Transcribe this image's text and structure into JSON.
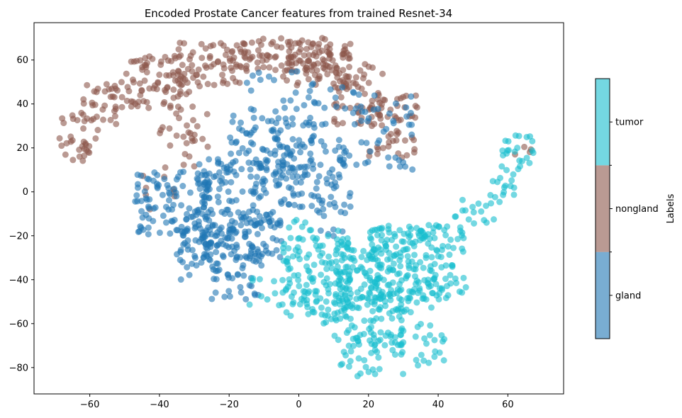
{
  "chart_data": {
    "type": "scatter",
    "title": "Encoded Prostate Cancer features from trained Resnet-34",
    "xlabel": "",
    "ylabel": "",
    "xlim": [
      -76,
      76
    ],
    "ylim": [
      -92,
      77
    ],
    "xticks": [
      -60,
      -40,
      -20,
      0,
      20,
      40,
      60
    ],
    "yticks": [
      -80,
      -60,
      -40,
      -20,
      0,
      20,
      40,
      60
    ],
    "marker_alpha": 0.6,
    "colorbar": {
      "label": "Labels",
      "classes": [
        "gland",
        "nongland",
        "tumor"
      ],
      "colors": [
        "#1f77b4",
        "#8c564b",
        "#17becf"
      ]
    },
    "series": [
      {
        "name": "nongland",
        "color": "#8c564b",
        "regions": [
          {
            "x": [
              -70,
              -58
            ],
            "y": [
              14,
              36
            ],
            "density": 0.55
          },
          {
            "x": [
              -62,
              -48
            ],
            "y": [
              28,
              50
            ],
            "density": 0.55
          },
          {
            "x": [
              -50,
              -30
            ],
            "y": [
              38,
              62
            ],
            "density": 0.7
          },
          {
            "x": [
              -35,
              -15
            ],
            "y": [
              48,
              68
            ],
            "density": 0.75
          },
          {
            "x": [
              -20,
              10
            ],
            "y": [
              55,
              70
            ],
            "density": 0.85
          },
          {
            "x": [
              -5,
              15
            ],
            "y": [
              48,
              68
            ],
            "density": 0.8
          },
          {
            "x": [
              10,
              25
            ],
            "y": [
              30,
              60
            ],
            "density": 0.6
          },
          {
            "x": [
              20,
              34
            ],
            "y": [
              15,
              45
            ],
            "density": 0.55
          },
          {
            "x": [
              -40,
              -25
            ],
            "y": [
              10,
              40
            ],
            "density": 0.3
          },
          {
            "x": [
              60,
              68
            ],
            "y": [
              15,
              22
            ],
            "density": 0.3
          },
          {
            "x": [
              -45,
              -35
            ],
            "y": [
              -8,
              10
            ],
            "density": 0.2
          }
        ]
      },
      {
        "name": "gland",
        "color": "#1f77b4",
        "regions": [
          {
            "x": [
              -47,
              -25
            ],
            "y": [
              -20,
              10
            ],
            "density": 0.75
          },
          {
            "x": [
              -30,
              -5
            ],
            "y": [
              -30,
              15
            ],
            "density": 0.85
          },
          {
            "x": [
              -20,
              5
            ],
            "y": [
              10,
              35
            ],
            "density": 0.6
          },
          {
            "x": [
              -5,
              15
            ],
            "y": [
              -10,
              25
            ],
            "density": 0.6
          },
          {
            "x": [
              -35,
              -15
            ],
            "y": [
              -40,
              -15
            ],
            "density": 0.6
          },
          {
            "x": [
              -25,
              -10
            ],
            "y": [
              -50,
              -30
            ],
            "density": 0.45
          },
          {
            "x": [
              0,
              20
            ],
            "y": [
              30,
              50
            ],
            "density": 0.3
          },
          {
            "x": [
              15,
              33
            ],
            "y": [
              10,
              45
            ],
            "density": 0.25
          },
          {
            "x": [
              -15,
              0
            ],
            "y": [
              35,
              55
            ],
            "density": 0.25
          },
          {
            "x": [
              5,
              15
            ],
            "y": [
              -25,
              -5
            ],
            "density": 0.3
          }
        ]
      },
      {
        "name": "tumor",
        "color": "#17becf",
        "regions": [
          {
            "x": [
              -5,
              15
            ],
            "y": [
              -60,
              -20
            ],
            "density": 0.8
          },
          {
            "x": [
              10,
              30
            ],
            "y": [
              -70,
              -25
            ],
            "density": 0.8
          },
          {
            "x": [
              20,
              40
            ],
            "y": [
              -55,
              -15
            ],
            "density": 0.7
          },
          {
            "x": [
              30,
              48
            ],
            "y": [
              -50,
              -15
            ],
            "density": 0.65
          },
          {
            "x": [
              12,
              30
            ],
            "y": [
              -84,
              -65
            ],
            "density": 0.5
          },
          {
            "x": [
              33,
              42
            ],
            "y": [
              -80,
              -60
            ],
            "density": 0.5
          },
          {
            "x": [
              -15,
              0
            ],
            "y": [
              -52,
              -38
            ],
            "density": 0.4
          },
          {
            "x": [
              44,
              56
            ],
            "y": [
              -15,
              -3
            ],
            "density": 0.5
          },
          {
            "x": [
              52,
              62
            ],
            "y": [
              -5,
              8
            ],
            "density": 0.5
          },
          {
            "x": [
              58,
              68
            ],
            "y": [
              5,
              26
            ],
            "density": 0.55
          },
          {
            "x": [
              -3,
              12
            ],
            "y": [
              -22,
              -12
            ],
            "density": 0.35
          }
        ]
      }
    ]
  }
}
